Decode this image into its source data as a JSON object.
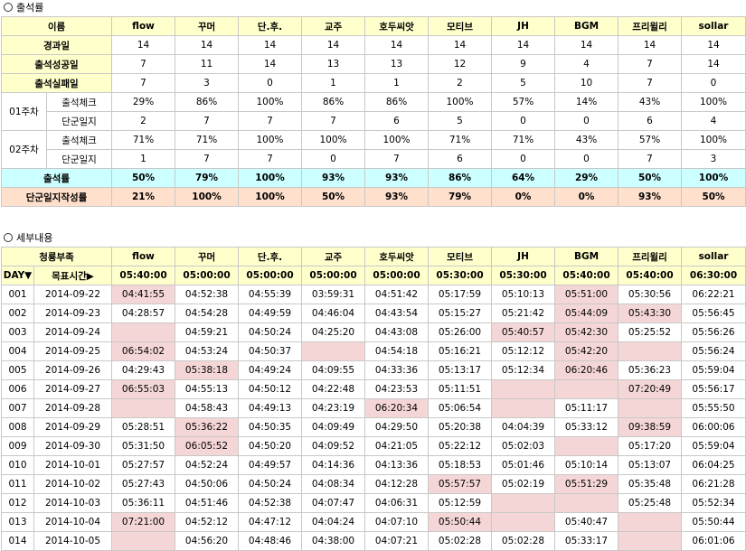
{
  "section1": {
    "title": "출석률",
    "header": [
      "이름",
      "flow",
      "꾸머",
      "단.후.",
      "교주",
      "호두씨앗",
      "모티브",
      "JH",
      "BGM",
      "프리윌리",
      "sollar"
    ],
    "summary_rows": [
      {
        "label": "경과일",
        "values": [
          "14",
          "14",
          "14",
          "14",
          "14",
          "14",
          "14",
          "14",
          "14",
          "14"
        ]
      },
      {
        "label": "출석성공일",
        "values": [
          "7",
          "11",
          "14",
          "13",
          "13",
          "12",
          "9",
          "4",
          "7",
          "14"
        ]
      },
      {
        "label": "출석실패일",
        "values": [
          "7",
          "3",
          "0",
          "1",
          "1",
          "2",
          "5",
          "10",
          "7",
          "0"
        ]
      }
    ],
    "weeks": [
      {
        "label": "01주차",
        "rows": [
          {
            "label": "출석체크",
            "values": [
              "29%",
              "86%",
              "100%",
              "86%",
              "86%",
              "100%",
              "57%",
              "14%",
              "43%",
              "100%"
            ]
          },
          {
            "label": "단군일지",
            "values": [
              "2",
              "7",
              "7",
              "7",
              "6",
              "5",
              "0",
              "0",
              "6",
              "4"
            ]
          }
        ]
      },
      {
        "label": "02주차",
        "rows": [
          {
            "label": "출석체크",
            "values": [
              "71%",
              "71%",
              "100%",
              "100%",
              "100%",
              "71%",
              "71%",
              "43%",
              "57%",
              "100%"
            ]
          },
          {
            "label": "단군일지",
            "values": [
              "1",
              "7",
              "7",
              "0",
              "7",
              "6",
              "0",
              "0",
              "7",
              "3"
            ]
          }
        ]
      }
    ],
    "attendance_rate": {
      "label": "출석률",
      "values": [
        "50%",
        "79%",
        "100%",
        "93%",
        "93%",
        "86%",
        "64%",
        "29%",
        "50%",
        "100%"
      ]
    },
    "journal_rate": {
      "label": "단군일지작성률",
      "values": [
        "21%",
        "100%",
        "100%",
        "50%",
        "93%",
        "79%",
        "0%",
        "0%",
        "93%",
        "50%"
      ]
    }
  },
  "section2": {
    "title": "세부내용",
    "header": [
      "청룡부족",
      "flow",
      "꾸머",
      "단.후.",
      "교주",
      "호두씨앗",
      "모티브",
      "JH",
      "BGM",
      "프리윌리",
      "sollar"
    ],
    "target_row": {
      "day": "DAY▼",
      "label": "목표시간▶",
      "values": [
        "05:40:00",
        "05:00:00",
        "05:00:00",
        "05:00:00",
        "05:00:00",
        "05:30:00",
        "05:30:00",
        "05:40:00",
        "05:40:00",
        "06:30:00"
      ]
    },
    "rows": [
      {
        "day": "001",
        "date": "2014-09-22",
        "values": [
          "04:41:55",
          "04:52:38",
          "04:55:39",
          "03:59:31",
          "04:51:42",
          "05:17:59",
          "05:10:13",
          "05:51:00",
          "05:30:56",
          "06:22:21"
        ],
        "hl": [
          1,
          0,
          0,
          0,
          0,
          0,
          0,
          1,
          0,
          0
        ]
      },
      {
        "day": "002",
        "date": "2014-09-23",
        "values": [
          "04:28:57",
          "04:54:28",
          "04:49:59",
          "04:46:04",
          "04:43:54",
          "05:15:27",
          "05:21:42",
          "05:44:09",
          "05:43:30",
          "05:56:45"
        ],
        "hl": [
          0,
          0,
          0,
          0,
          0,
          0,
          0,
          1,
          1,
          0
        ]
      },
      {
        "day": "003",
        "date": "2014-09-24",
        "values": [
          "",
          "04:59:21",
          "04:50:24",
          "04:25:20",
          "04:43:08",
          "05:26:00",
          "05:40:57",
          "05:42:30",
          "05:25:52",
          "05:56:26"
        ],
        "hl": [
          1,
          0,
          0,
          0,
          0,
          0,
          1,
          1,
          0,
          0
        ]
      },
      {
        "day": "004",
        "date": "2014-09-25",
        "values": [
          "06:54:02",
          "04:53:24",
          "04:50:37",
          "",
          "04:54:18",
          "05:16:21",
          "05:12:12",
          "05:42:20",
          "",
          "05:56:24"
        ],
        "hl": [
          1,
          0,
          0,
          1,
          0,
          0,
          0,
          1,
          1,
          0
        ]
      },
      {
        "day": "005",
        "date": "2014-09-26",
        "values": [
          "04:29:43",
          "05:38:18",
          "04:49:24",
          "04:09:55",
          "04:33:36",
          "05:13:17",
          "05:12:34",
          "06:20:46",
          "05:36:23",
          "05:59:04"
        ],
        "hl": [
          0,
          1,
          0,
          0,
          0,
          0,
          0,
          1,
          0,
          0
        ]
      },
      {
        "day": "006",
        "date": "2014-09-27",
        "values": [
          "06:55:03",
          "04:55:13",
          "04:50:12",
          "04:22:48",
          "04:23:53",
          "05:11:51",
          "",
          "",
          "07:20:49",
          "05:56:17"
        ],
        "hl": [
          1,
          0,
          0,
          0,
          0,
          0,
          1,
          1,
          1,
          0
        ]
      },
      {
        "day": "007",
        "date": "2014-09-28",
        "values": [
          "",
          "04:58:43",
          "04:49:13",
          "04:23:19",
          "06:20:34",
          "05:06:54",
          "",
          "05:11:17",
          "",
          "05:55:50"
        ],
        "hl": [
          1,
          0,
          0,
          0,
          1,
          0,
          1,
          0,
          1,
          0
        ]
      },
      {
        "day": "008",
        "date": "2014-09-29",
        "values": [
          "05:28:51",
          "05:36:22",
          "04:50:35",
          "04:09:49",
          "04:29:50",
          "05:20:38",
          "04:04:39",
          "05:33:12",
          "09:38:59",
          "06:00:06"
        ],
        "hl": [
          0,
          1,
          0,
          0,
          0,
          0,
          0,
          0,
          1,
          0
        ]
      },
      {
        "day": "009",
        "date": "2014-09-30",
        "values": [
          "05:31:50",
          "06:05:52",
          "04:50:20",
          "04:09:52",
          "04:21:05",
          "05:22:12",
          "05:02:03",
          "",
          "05:17:20",
          "05:59:04"
        ],
        "hl": [
          0,
          1,
          0,
          0,
          0,
          0,
          0,
          1,
          0,
          0
        ]
      },
      {
        "day": "010",
        "date": "2014-10-01",
        "values": [
          "05:27:57",
          "04:52:24",
          "04:49:57",
          "04:14:36",
          "04:13:36",
          "05:18:53",
          "05:01:46",
          "05:10:14",
          "05:13:07",
          "06:04:25"
        ],
        "hl": [
          0,
          0,
          0,
          0,
          0,
          0,
          0,
          0,
          0,
          0
        ]
      },
      {
        "day": "011",
        "date": "2014-10-02",
        "values": [
          "05:27:43",
          "04:50:06",
          "04:50:24",
          "04:08:34",
          "04:12:28",
          "05:57:57",
          "05:02:19",
          "05:51:29",
          "05:35:48",
          "06:21:28"
        ],
        "hl": [
          0,
          0,
          0,
          0,
          0,
          1,
          0,
          1,
          0,
          0
        ]
      },
      {
        "day": "012",
        "date": "2014-10-03",
        "values": [
          "05:36:11",
          "04:51:46",
          "04:52:38",
          "04:07:47",
          "04:06:31",
          "05:12:59",
          "",
          "",
          "05:25:48",
          "05:52:34"
        ],
        "hl": [
          0,
          0,
          0,
          0,
          0,
          0,
          1,
          1,
          0,
          0
        ]
      },
      {
        "day": "013",
        "date": "2014-10-04",
        "values": [
          "07:21:00",
          "04:52:12",
          "04:47:12",
          "04:04:24",
          "04:07:10",
          "05:50:44",
          "",
          "05:40:47",
          "",
          "05:50:44"
        ],
        "hl": [
          1,
          0,
          0,
          0,
          0,
          1,
          1,
          0,
          1,
          0
        ]
      },
      {
        "day": "014",
        "date": "2014-10-05",
        "values": [
          "",
          "04:56:20",
          "04:48:46",
          "04:38:00",
          "04:07:21",
          "05:02:28",
          "05:02:28",
          "05:33:17",
          "",
          "06:01:06"
        ],
        "hl": [
          1,
          0,
          0,
          0,
          0,
          0,
          0,
          0,
          1,
          0
        ]
      }
    ]
  }
}
